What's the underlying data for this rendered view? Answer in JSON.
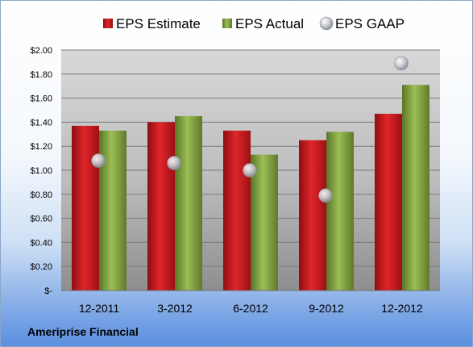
{
  "chart_data": {
    "type": "bar",
    "categories": [
      "12-2011",
      "3-2012",
      "6-2012",
      "9-2012",
      "12-2012"
    ],
    "series": [
      {
        "name": "EPS Estimate",
        "type": "bar",
        "color": "#c0171c",
        "values": [
          1.37,
          1.4,
          1.33,
          1.25,
          1.47
        ]
      },
      {
        "name": "EPS Actual",
        "type": "bar",
        "color": "#7a9a3a",
        "values": [
          1.33,
          1.45,
          1.13,
          1.32,
          1.71
        ]
      },
      {
        "name": "EPS GAAP",
        "type": "scatter",
        "color": "#b8bcc4",
        "values": [
          1.08,
          1.06,
          1.0,
          0.79,
          1.89
        ]
      }
    ],
    "ylim": [
      0,
      2.0
    ],
    "yticks": [
      {
        "value": 2.0,
        "label": "$2.00"
      },
      {
        "value": 1.8,
        "label": "$1.80"
      },
      {
        "value": 1.6,
        "label": "$1.60"
      },
      {
        "value": 1.4,
        "label": "$1.40"
      },
      {
        "value": 1.2,
        "label": "$1.20"
      },
      {
        "value": 1.0,
        "label": "$1.00"
      },
      {
        "value": 0.8,
        "label": "$0.80"
      },
      {
        "value": 0.6,
        "label": "$0.60"
      },
      {
        "value": 0.4,
        "label": "$0.40"
      },
      {
        "value": 0.2,
        "label": "$0.20"
      },
      {
        "value": 0.0,
        "label": "$-"
      }
    ],
    "legend_position": "top",
    "grid": true
  },
  "footer": {
    "company": "Ameriprise Financial"
  }
}
